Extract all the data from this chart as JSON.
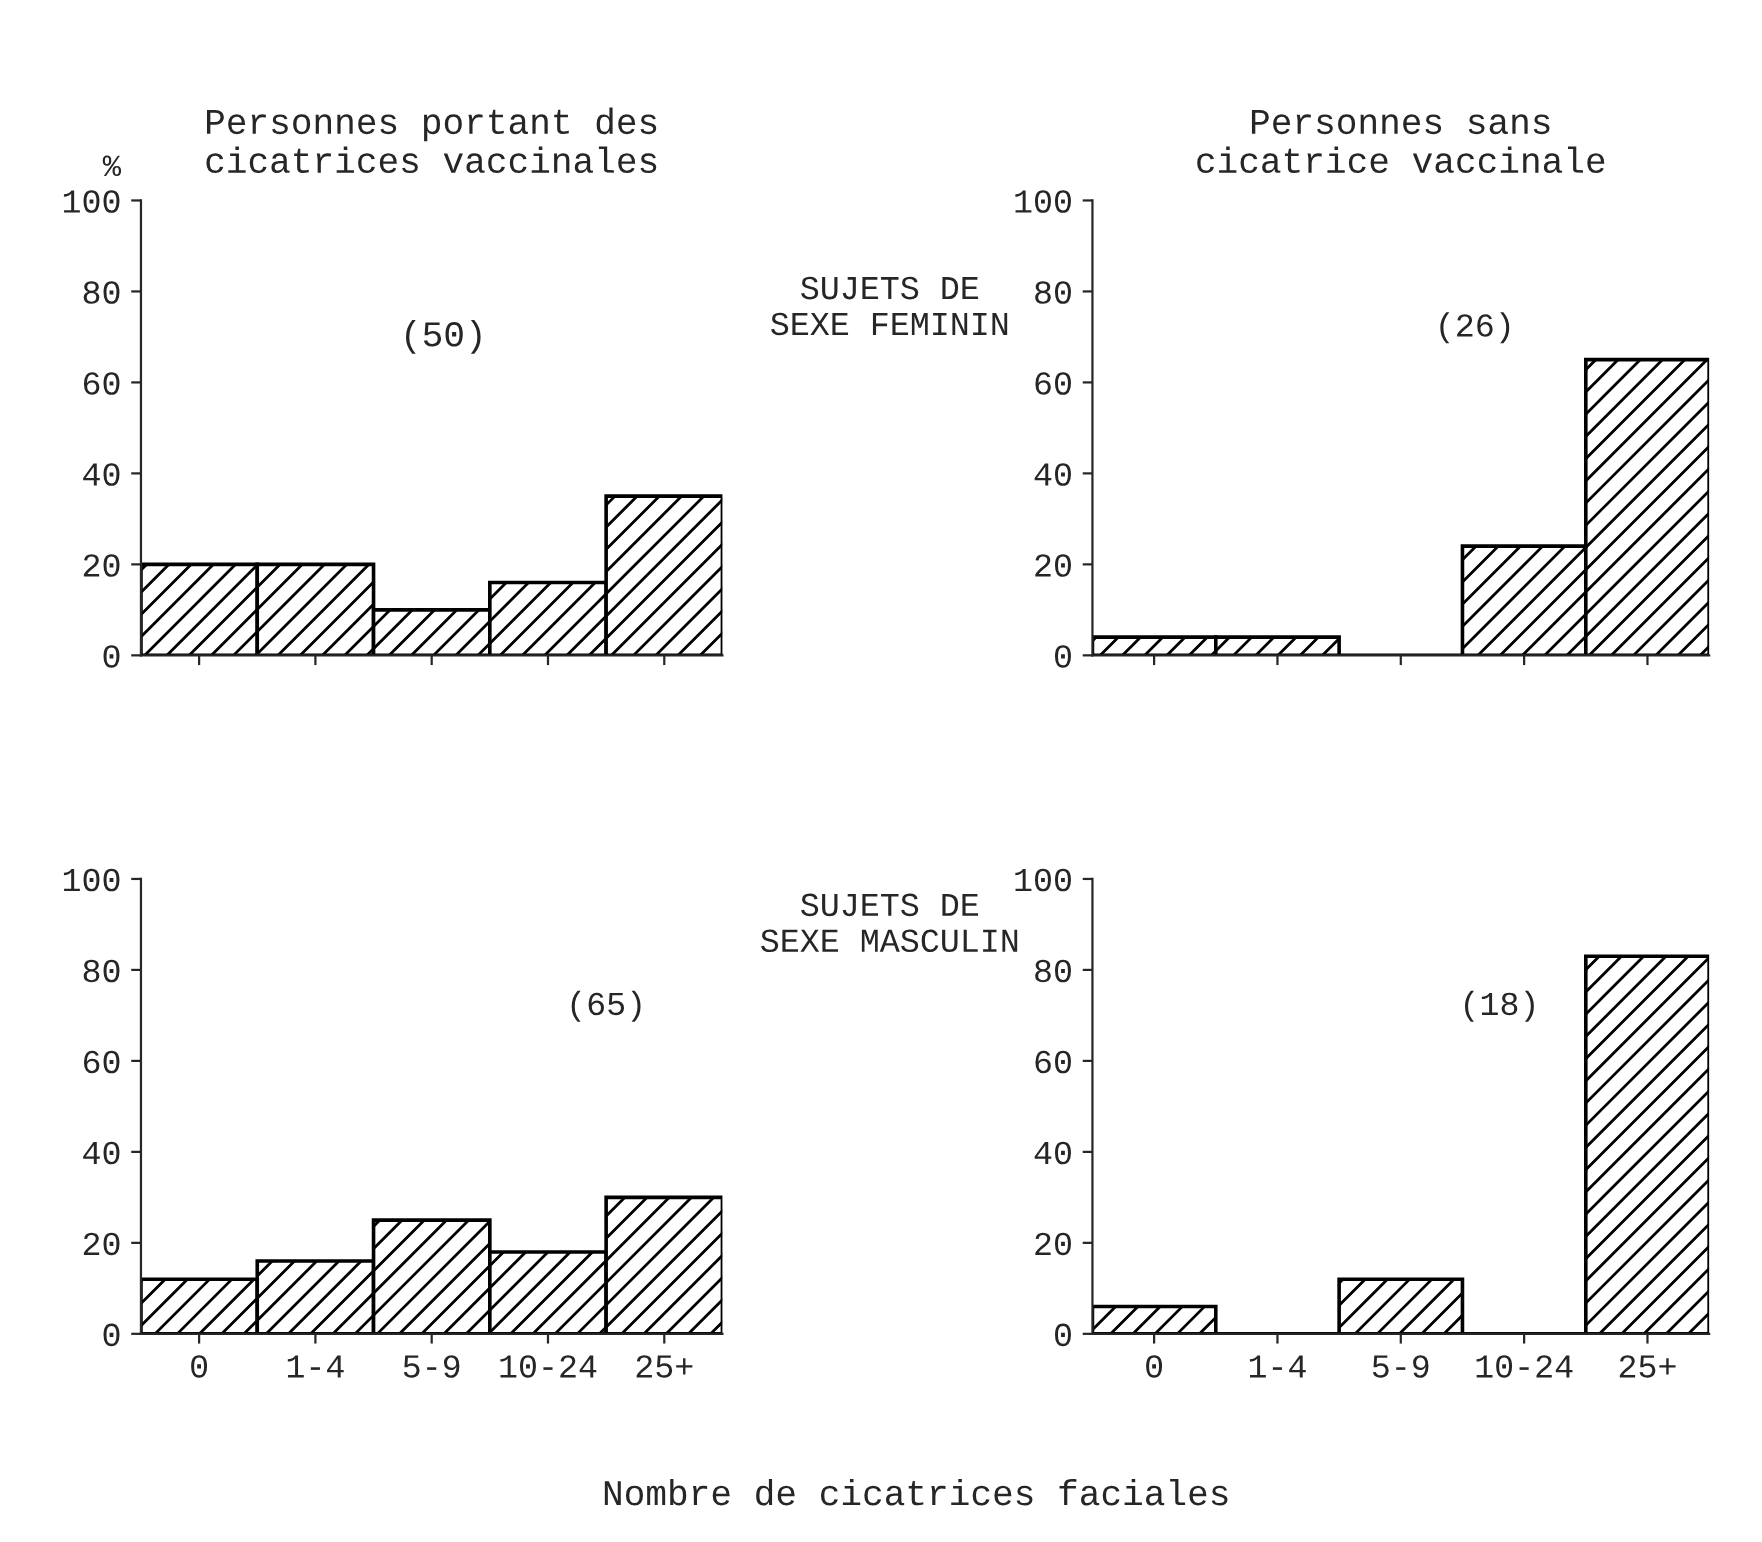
{
  "chart_data": [
    {
      "type": "bar",
      "title": "Personnes portant des\ncicatrices vaccinales",
      "ylabel": "%",
      "categories": [
        null,
        null,
        null,
        null,
        null
      ],
      "values": [
        20,
        20,
        10,
        16,
        35
      ],
      "color": "#000000",
      "ylim": [
        0,
        100
      ],
      "yticks": [
        0,
        20,
        40,
        60,
        80,
        100
      ],
      "tick_labels": "y",
      "annotations": [
        "(50)",
        "SUJETS DE\nSEXE FEMININ"
      ]
    },
    {
      "type": "bar",
      "title": "Personnes sans\ncicatrice vaccinale",
      "categories": [
        null,
        null,
        null,
        null,
        null
      ],
      "values": [
        4,
        4,
        0,
        24,
        65
      ],
      "color": "#000000",
      "ylim": [
        0,
        100
      ],
      "yticks": [
        0,
        20,
        40,
        60,
        80,
        100
      ],
      "tick_labels": "y",
      "annotations": [
        "(26)"
      ]
    },
    {
      "type": "bar",
      "categories": [
        "0",
        "1-4",
        "5-9",
        "10-24",
        "25+"
      ],
      "values": [
        12,
        16,
        25,
        18,
        30
      ],
      "color": "#000000",
      "ylim": [
        0,
        100
      ],
      "yticks": [
        0,
        20,
        40,
        60,
        80,
        100
      ],
      "annotations": [
        "(65)",
        "SUJETS DE\nSEXE MASCULIN",
        "Nombre de cicatrices faciales"
      ]
    },
    {
      "type": "bar",
      "categories": [
        "0",
        "1-4",
        "5-9",
        "10-24",
        "25+"
      ],
      "values": [
        6,
        0,
        12,
        0,
        83
      ],
      "color": "#000000",
      "ylim": [
        0,
        100
      ],
      "yticks": [
        0,
        20,
        40,
        60,
        80,
        100
      ],
      "annotations": [
        "(18)"
      ]
    }
  ]
}
